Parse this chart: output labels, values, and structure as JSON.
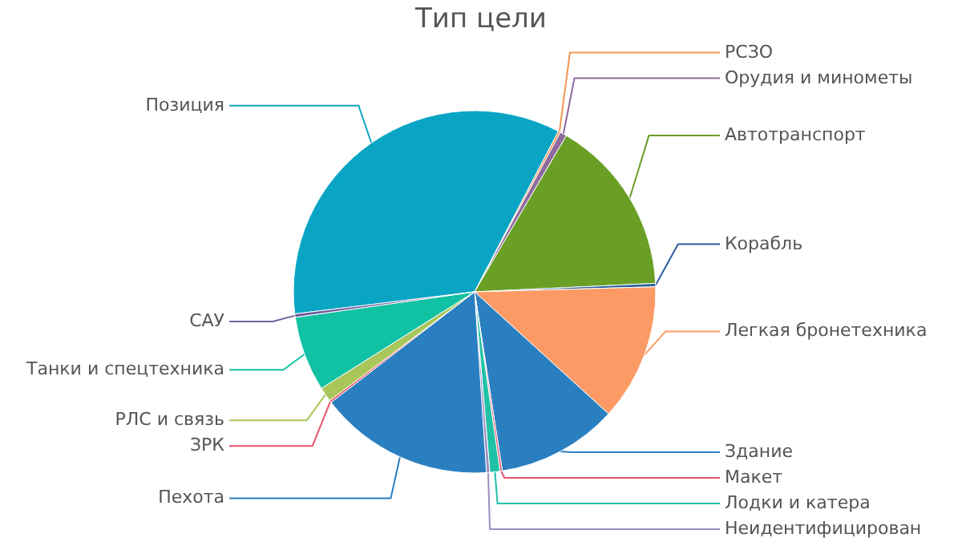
{
  "chart_data": {
    "type": "pie",
    "title": "Тип цели",
    "categories": [
      "Позиция",
      "РСЗО",
      "Орудия и минометы",
      "Автотранспорт",
      "Корабль",
      "Легкая бронетехника",
      "Здание",
      "Макет",
      "Лодки и катера",
      "Неидентифицирован",
      "Пехота",
      "ЗРК",
      "РЛС и связь",
      "Танки и спецтехника",
      "САУ"
    ],
    "values": [
      34.6,
      0.2,
      0.6,
      15.8,
      0.3,
      12.2,
      10.8,
      0.2,
      0.9,
      0.3,
      15.6,
      0.2,
      1.3,
      6.7,
      0.3
    ],
    "colors": [
      "#0aa5c5",
      "#f79552",
      "#8e6b9e",
      "#6a9f26",
      "#2b5f9e",
      "#fb9a64",
      "#2a7fc1",
      "#e0566f",
      "#1fc2a6",
      "#9e8fc0",
      "#2a7fc1",
      "#e9546b",
      "#a8c65a",
      "#11c1a3",
      "#7060a0"
    ],
    "legend": false
  }
}
